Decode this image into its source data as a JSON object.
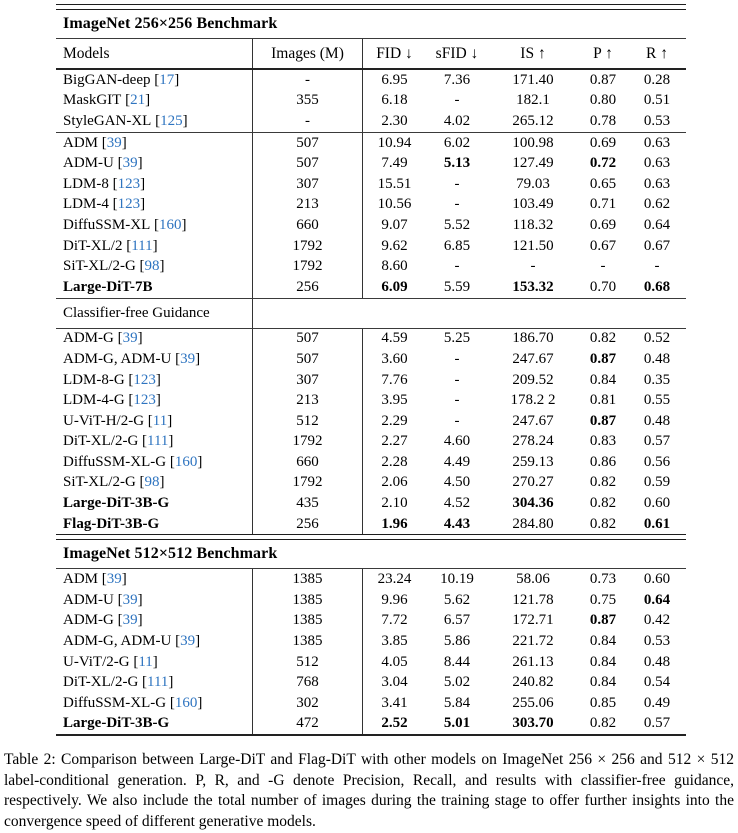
{
  "page": {
    "caption": "Table 2: Comparison between Large-DiT and Flag-DiT with other models on ImageNet 256 × 256 and 512 × 512 label-conditional generation. P, R, and -G denote Precision, Recall, and results with classifier-free guidance, respectively. We also include the total number of images during the training stage to offer further insights into the convergence speed of different generative models."
  },
  "colors": {
    "citation_blue": "#2E74C0",
    "rule_dark": "#222222",
    "text": "#000000"
  },
  "table": {
    "columns": [
      "Models",
      "Images (M)",
      "FID ↓",
      "sFID ↓",
      "IS ↑",
      "P ↑",
      "R ↑"
    ],
    "sections": [
      {
        "type": "rule",
        "style": "double"
      },
      {
        "type": "title",
        "text": "ImageNet 256×256 Benchmark"
      },
      {
        "type": "rule",
        "style": "thin"
      },
      {
        "type": "header"
      },
      {
        "type": "rule",
        "style": "med"
      },
      {
        "type": "rows",
        "rows": [
          {
            "name": "BigGAN-deep",
            "cite": "17",
            "nb": false,
            "v": [
              "-",
              "6.95",
              "7.36",
              "171.40",
              "0.87",
              "0.28"
            ],
            "b": []
          },
          {
            "name": "MaskGIT",
            "cite": "21",
            "nb": false,
            "v": [
              "355",
              "6.18",
              "-",
              "182.1",
              "0.80",
              "0.51"
            ],
            "b": []
          },
          {
            "name": "StyleGAN-XL",
            "cite": "125",
            "nb": false,
            "v": [
              "-",
              "2.30",
              "4.02",
              "265.12",
              "0.78",
              "0.53"
            ],
            "b": []
          }
        ]
      },
      {
        "type": "rule",
        "style": "thin"
      },
      {
        "type": "rows",
        "rows": [
          {
            "name": "ADM",
            "cite": "39",
            "nb": false,
            "v": [
              "507",
              "10.94",
              "6.02",
              "100.98",
              "0.69",
              "0.63"
            ],
            "b": []
          },
          {
            "name": "ADM-U",
            "cite": "39",
            "nb": false,
            "v": [
              "507",
              "7.49",
              "5.13",
              "127.49",
              "0.72",
              "0.63"
            ],
            "b": [
              2,
              4
            ]
          },
          {
            "name": "LDM-8",
            "cite": "123",
            "nb": false,
            "v": [
              "307",
              "15.51",
              "-",
              "79.03",
              "0.65",
              "0.63"
            ],
            "b": []
          },
          {
            "name": "LDM-4",
            "cite": "123",
            "nb": false,
            "v": [
              "213",
              "10.56",
              "-",
              "103.49",
              "0.71",
              "0.62"
            ],
            "b": []
          },
          {
            "name": "DiffuSSM-XL",
            "cite": "160",
            "nb": false,
            "v": [
              "660",
              "9.07",
              "5.52",
              "118.32",
              "0.69",
              "0.64"
            ],
            "b": []
          },
          {
            "name": "DiT-XL/2",
            "cite": "111",
            "nb": false,
            "v": [
              "1792",
              "9.62",
              "6.85",
              "121.50",
              "0.67",
              "0.67"
            ],
            "b": []
          },
          {
            "name": "SiT-XL/2-G",
            "cite": "98",
            "nb": false,
            "v": [
              "1792",
              "8.60",
              "-",
              "-",
              "-",
              "-"
            ],
            "b": []
          },
          {
            "name": "Large-DiT-7B",
            "cite": "",
            "nb": true,
            "v": [
              "256",
              "6.09",
              "5.59",
              "153.32",
              "0.70",
              "0.68"
            ],
            "b": [
              1,
              3,
              5
            ]
          }
        ]
      },
      {
        "type": "rule",
        "style": "thin"
      },
      {
        "type": "subheader",
        "text": "Classifier-free Guidance"
      },
      {
        "type": "rule",
        "style": "thin"
      },
      {
        "type": "rows",
        "rows": [
          {
            "name": "ADM-G",
            "cite": "39",
            "nb": false,
            "v": [
              "507",
              "4.59",
              "5.25",
              "186.70",
              "0.82",
              "0.52"
            ],
            "b": []
          },
          {
            "name": "ADM-G, ADM-U",
            "cite": "39",
            "nb": false,
            "v": [
              "507",
              "3.60",
              "-",
              "247.67",
              "0.87",
              "0.48"
            ],
            "b": [
              4
            ]
          },
          {
            "name": "LDM-8-G",
            "cite": "123",
            "nb": false,
            "v": [
              "307",
              "7.76",
              "-",
              "209.52",
              "0.84",
              "0.35"
            ],
            "b": []
          },
          {
            "name": "LDM-4-G",
            "cite": "123",
            "nb": false,
            "v": [
              "213",
              "3.95",
              "-",
              "178.2 2",
              "0.81",
              "0.55"
            ],
            "b": []
          },
          {
            "name": "U-ViT-H/2-G",
            "cite": "11",
            "nb": false,
            "v": [
              "512",
              "2.29",
              "-",
              "247.67",
              "0.87",
              "0.48"
            ],
            "b": [
              4
            ]
          },
          {
            "name": "DiT-XL/2-G",
            "cite": "111",
            "nb": false,
            "v": [
              "1792",
              "2.27",
              "4.60",
              "278.24",
              "0.83",
              "0.57"
            ],
            "b": []
          },
          {
            "name": "DiffuSSM-XL-G",
            "cite": "160",
            "nb": false,
            "v": [
              "660",
              "2.28",
              "4.49",
              "259.13",
              "0.86",
              "0.56"
            ],
            "b": []
          },
          {
            "name": "SiT-XL/2-G",
            "cite": "98",
            "nb": false,
            "v": [
              "1792",
              "2.06",
              "4.50",
              "270.27",
              "0.82",
              "0.59"
            ],
            "b": []
          },
          {
            "name": "Large-DiT-3B-G",
            "cite": "",
            "nb": true,
            "v": [
              "435",
              "2.10",
              "4.52",
              "304.36",
              "0.82",
              "0.60"
            ],
            "b": [
              3
            ]
          },
          {
            "name": "Flag-DiT-3B-G",
            "cite": "",
            "nb": true,
            "v": [
              "256",
              "1.96",
              "4.43",
              "284.80",
              "0.82",
              "0.61"
            ],
            "b": [
              1,
              2,
              5
            ]
          }
        ]
      },
      {
        "type": "rule",
        "style": "double"
      },
      {
        "type": "title",
        "text": "ImageNet 512×512 Benchmark"
      },
      {
        "type": "rule",
        "style": "thin"
      },
      {
        "type": "rows",
        "rows": [
          {
            "name": "ADM",
            "cite": "39",
            "nb": false,
            "v": [
              "1385",
              "23.24",
              "10.19",
              "58.06",
              "0.73",
              "0.60"
            ],
            "b": []
          },
          {
            "name": "ADM-U",
            "cite": "39",
            "nb": false,
            "v": [
              "1385",
              "9.96",
              "5.62",
              "121.78",
              "0.75",
              "0.64"
            ],
            "b": [
              5
            ]
          },
          {
            "name": "ADM-G",
            "cite": "39",
            "nb": false,
            "v": [
              "1385",
              "7.72",
              "6.57",
              "172.71",
              "0.87",
              "0.42"
            ],
            "b": [
              4
            ]
          },
          {
            "name": "ADM-G, ADM-U",
            "cite": "39",
            "nb": false,
            "v": [
              "1385",
              "3.85",
              "5.86",
              "221.72",
              "0.84",
              "0.53"
            ],
            "b": []
          },
          {
            "name": "U-ViT/2-G",
            "cite": "11",
            "nb": false,
            "v": [
              "512",
              "4.05",
              "8.44",
              "261.13",
              "0.84",
              "0.48"
            ],
            "b": []
          },
          {
            "name": "DiT-XL/2-G",
            "cite": "111",
            "nb": false,
            "v": [
              "768",
              "3.04",
              "5.02",
              "240.82",
              "0.84",
              "0.54"
            ],
            "b": []
          },
          {
            "name": "DiffuSSM-XL-G",
            "cite": "160",
            "nb": false,
            "v": [
              "302",
              "3.41",
              "5.84",
              "255.06",
              "0.85",
              "0.49"
            ],
            "b": []
          },
          {
            "name": "Large-DiT-3B-G",
            "cite": "",
            "nb": true,
            "v": [
              "472",
              "2.52",
              "5.01",
              "303.70",
              "0.82",
              "0.57"
            ],
            "b": [
              1,
              2,
              3
            ]
          }
        ]
      },
      {
        "type": "rule",
        "style": "med"
      }
    ]
  }
}
